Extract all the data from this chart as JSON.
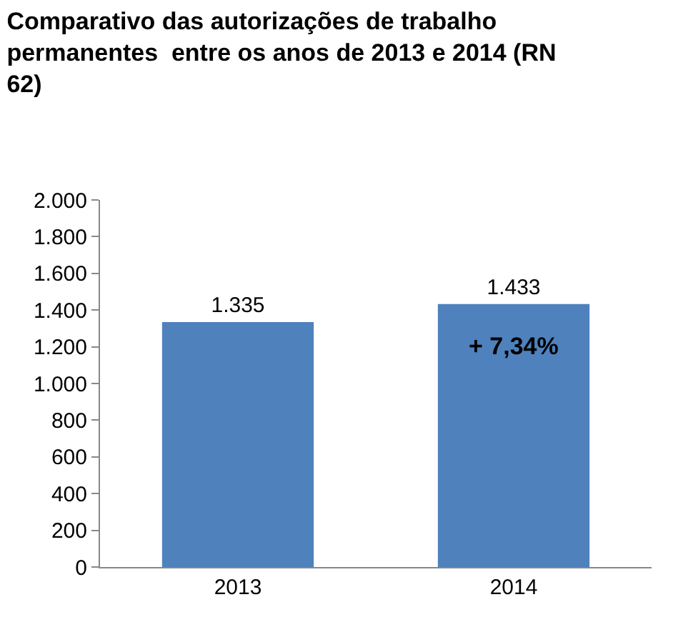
{
  "chart_data": {
    "type": "bar",
    "title": "Comparativo das autorizações de trabalho permanentes  entre os anos de 2013 e 2014 (RN 62)",
    "categories": [
      "2013",
      "2014"
    ],
    "values": [
      1335,
      1433
    ],
    "value_labels": [
      "1.335",
      "1.433"
    ],
    "color": "#4f81bd",
    "ylim": [
      0,
      2000
    ],
    "yticks": [
      {
        "value": 0,
        "label": "0"
      },
      {
        "value": 200,
        "label": "200"
      },
      {
        "value": 400,
        "label": "400"
      },
      {
        "value": 600,
        "label": "600"
      },
      {
        "value": 800,
        "label": "800"
      },
      {
        "value": 1000,
        "label": "1.000"
      },
      {
        "value": 1200,
        "label": "1.200"
      },
      {
        "value": 1400,
        "label": "1.400"
      },
      {
        "value": 1600,
        "label": "1.600"
      },
      {
        "value": 1800,
        "label": "1.800"
      },
      {
        "value": 2000,
        "label": "2.000"
      }
    ],
    "annotations": [
      "+ 7,34%"
    ],
    "legend": false
  }
}
